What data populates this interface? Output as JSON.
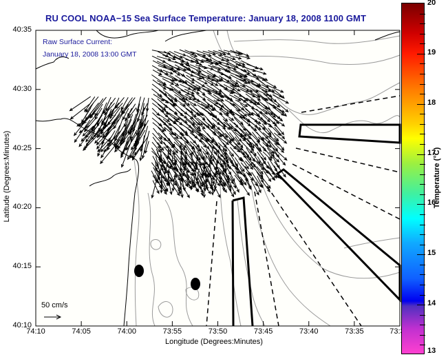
{
  "title": "RU COOL  NOAA−15  Sea Surface Temperature:  January 18, 2008 1100 GMT",
  "current_label": {
    "line1": "Raw Surface Current:",
    "line2": "January 18, 2008 13:00 GMT"
  },
  "scale_label": "50 cm/s",
  "y_axis": {
    "title": "Latitude (Degrees:Minutes)",
    "ticks": [
      "40:35",
      "40:30",
      "40:25",
      "40:20",
      "40:15",
      "40:10"
    ]
  },
  "x_axis": {
    "title": "Longitude (Degrees:Minutes)",
    "ticks": [
      "74:10",
      "74:05",
      "74:00",
      "73:55",
      "73:50",
      "73:45",
      "73:40",
      "73:35",
      "73:3"
    ]
  },
  "colorbar": {
    "title": "Temperature (°C)",
    "ticks": [
      "20",
      "19",
      "18",
      "17",
      "16",
      "15",
      "14",
      "13"
    ],
    "range": [
      13,
      20
    ],
    "stops": [
      {
        "t": 20,
        "color": "#7a0000"
      },
      {
        "t": 19.4,
        "color": "#d00000"
      },
      {
        "t": 19.0,
        "color": "#ff1a00"
      },
      {
        "t": 18.3,
        "color": "#ff7a00"
      },
      {
        "t": 17.6,
        "color": "#ffd000"
      },
      {
        "t": 17.3,
        "color": "#ffff00"
      },
      {
        "t": 16.8,
        "color": "#9cf040"
      },
      {
        "t": 16.2,
        "color": "#40f0a0"
      },
      {
        "t": 15.7,
        "color": "#00ffff"
      },
      {
        "t": 15.2,
        "color": "#10a8ff"
      },
      {
        "t": 14.5,
        "color": "#1060ff"
      },
      {
        "t": 14.05,
        "color": "#0000f0"
      },
      {
        "t": 13.95,
        "color": "#5030c0"
      },
      {
        "t": 13.5,
        "color": "#c030d0"
      },
      {
        "t": 13.0,
        "color": "#ff40d0"
      }
    ]
  },
  "colors": {
    "title": "#1a1a9c",
    "coast": "#000000",
    "contour": "#999999",
    "background": "#fffffb"
  },
  "chart_data": {
    "type": "vector-map",
    "title": "RU COOL  NOAA−15  Sea Surface Temperature:  January 18, 2008 1100 GMT",
    "xlabel": "Longitude (Degrees:Minutes)",
    "ylabel": "Latitude (Degrees:Minutes)",
    "xlim": [
      "74:10",
      "73:30"
    ],
    "ylim": [
      "40:10",
      "40:35"
    ],
    "vector_scale": "50 cm/s",
    "colorbar_range_degC": [
      13,
      20
    ]
  }
}
